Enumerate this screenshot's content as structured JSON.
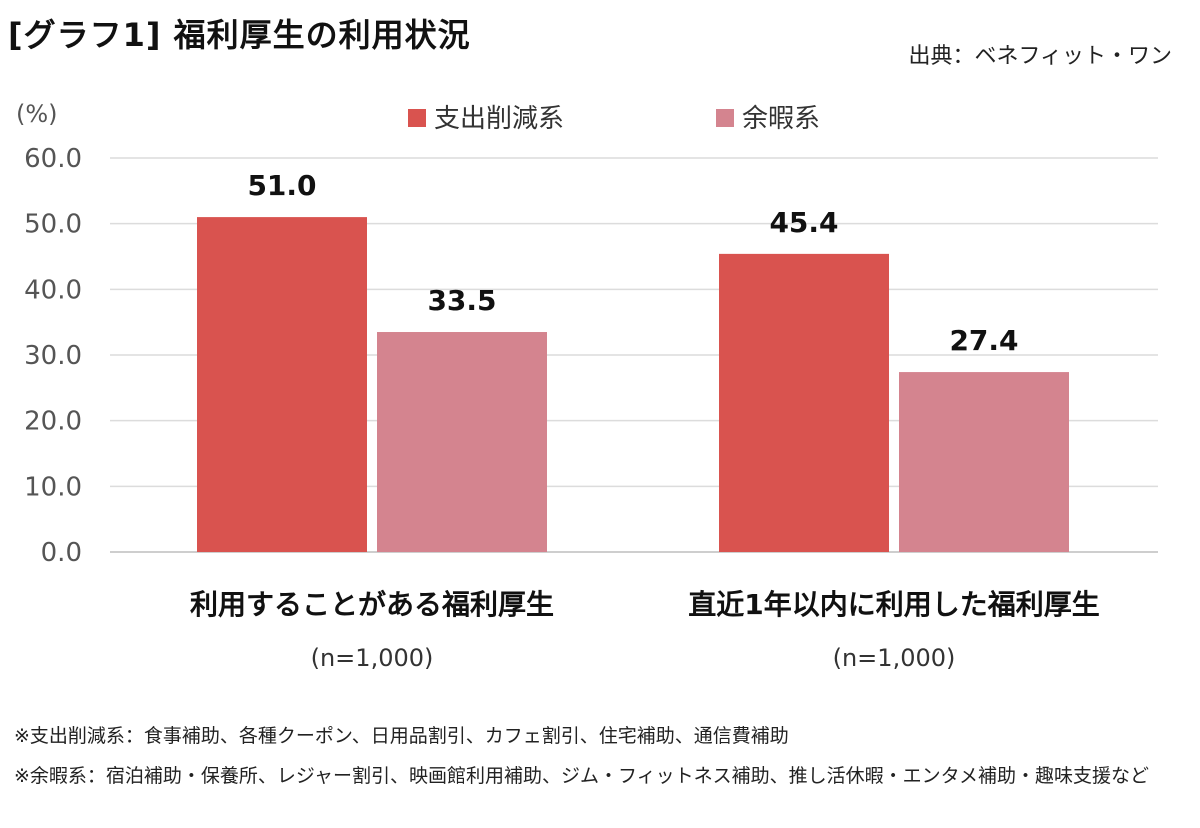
{
  "title": "[グラフ1] 福利厚生の利用状況",
  "source": "出典：ベネフィット・ワン",
  "footnotes": [
    "※支出削減系：食事補助、各種クーポン、日用品割引、カフェ割引、住宅補助、通信費補助",
    "※余暇系：宿泊補助・保養所、レジャー割引、映画館利用補助、ジム・フィットネス補助、推し活休暇・エンタメ補助・趣味支援など"
  ],
  "chart_data": {
    "type": "bar",
    "y_unit_label": "(%)",
    "ylim": [
      0,
      60
    ],
    "y_ticks": [
      "0.0",
      "10.0",
      "20.0",
      "30.0",
      "40.0",
      "50.0",
      "60.0"
    ],
    "grid": true,
    "legend_position": "top",
    "categories": [
      {
        "label": "利用することがある福利厚生",
        "sublabel": "(n=1,000)"
      },
      {
        "label": "直近1年以内に利用した福利厚生",
        "sublabel": "(n=1,000)"
      }
    ],
    "series": [
      {
        "name": "支出削減系",
        "color": "#d9534f",
        "values": [
          51.0,
          45.4
        ],
        "labels": [
          "51.0",
          "45.4"
        ]
      },
      {
        "name": "余暇系",
        "color": "#d4848f",
        "values": [
          33.5,
          27.4
        ],
        "labels": [
          "33.5",
          "27.4"
        ]
      }
    ]
  }
}
